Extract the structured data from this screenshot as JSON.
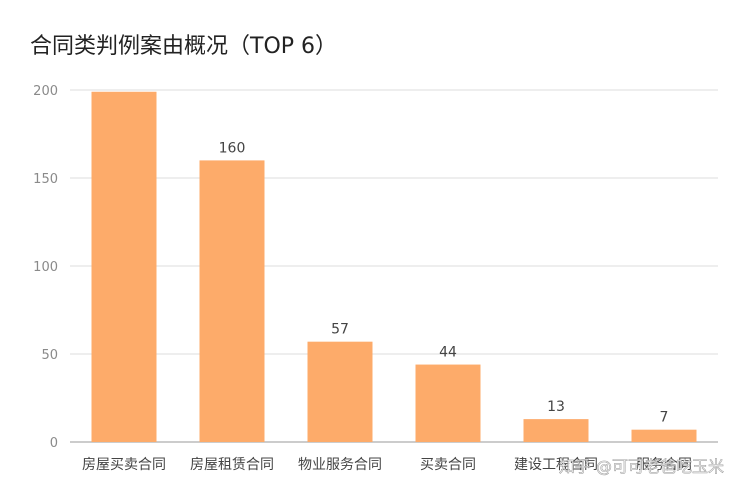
{
  "title": "合同类判例案由概况（TOP 6）",
  "watermark": "知乎 @可可老爸吃玉米",
  "colors": {
    "bar": "#fdab6a",
    "grid": "#dcdcdc",
    "axis": "#999999"
  },
  "chart_data": {
    "type": "bar",
    "title": "合同类判例案由概况（TOP 6）",
    "categories": [
      "房屋买卖合同",
      "房屋租赁合同",
      "物业服务合同",
      "买卖合同",
      "建设工程合同",
      "服务合同"
    ],
    "values": [
      199,
      160,
      57,
      44,
      13,
      7
    ],
    "data_labels": [
      null,
      "160",
      "57",
      "44",
      "13",
      "7"
    ],
    "ylim": [
      0,
      200
    ],
    "yticks": [
      0,
      50,
      100,
      150,
      200
    ],
    "grid": true,
    "legend": "none"
  }
}
